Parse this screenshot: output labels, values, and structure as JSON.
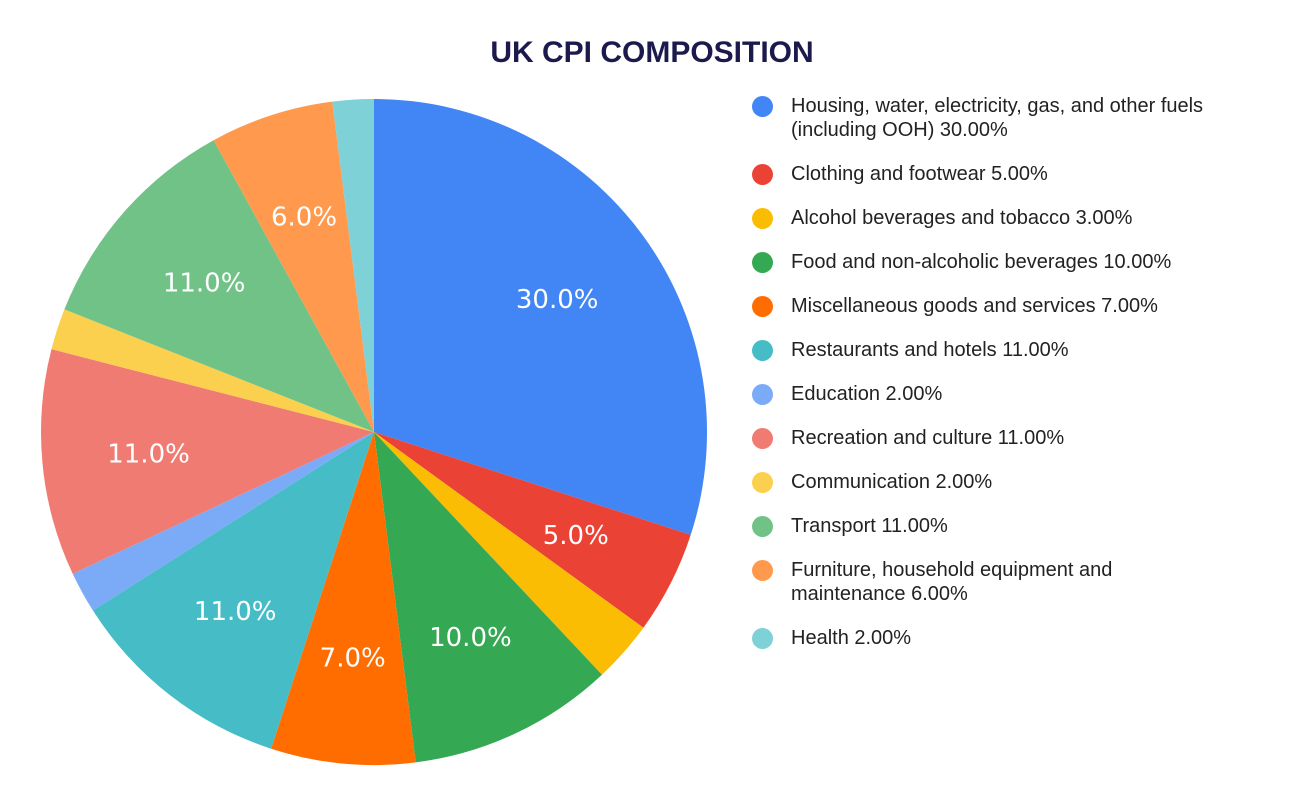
{
  "chart_data": {
    "type": "pie",
    "title": "UK CPI COMPOSITION",
    "start_angle": "top",
    "direction": "clockwise",
    "legend_position": "right",
    "slices": [
      {
        "label": "Housing, water, electricity, gas, and other fuels (including OOH)",
        "value": 30,
        "legend": "Housing, water, electricity, gas, and other fuels (including OOH) 30.00%",
        "data_label": "30.0%",
        "color": "#4285F4"
      },
      {
        "label": "Clothing and footwear",
        "value": 5,
        "legend": "Clothing and footwear 5.00%",
        "data_label": "5.0%",
        "color": "#EA4335"
      },
      {
        "label": "Alcohol beverages and tobacco",
        "value": 3,
        "legend": "Alcohol beverages and tobacco 3.00%",
        "data_label": "",
        "color": "#FBBC04"
      },
      {
        "label": "Food and non-alcoholic beverages",
        "value": 10,
        "legend": "Food and non-alcoholic beverages 10.00%",
        "data_label": "10.0%",
        "color": "#34A853"
      },
      {
        "label": "Miscellaneous goods and services",
        "value": 7,
        "legend": "Miscellaneous goods and services 7.00%",
        "data_label": "7.0%",
        "color": "#FF6D01"
      },
      {
        "label": "Restaurants and hotels",
        "value": 11,
        "legend": "Restaurants and hotels 11.00%",
        "data_label": "11.0%",
        "color": "#46BDC6"
      },
      {
        "label": "Education",
        "value": 2,
        "legend": "Education 2.00%",
        "data_label": "",
        "color": "#7BAAF7"
      },
      {
        "label": "Recreation and culture",
        "value": 11,
        "legend": "Recreation and culture 11.00%",
        "data_label": "11.0%",
        "color": "#F07B72"
      },
      {
        "label": "Communication",
        "value": 2,
        "legend": "Communication 2.00%",
        "data_label": "",
        "color": "#FCD04F"
      },
      {
        "label": "Transport",
        "value": 11,
        "legend": "Transport 11.00%",
        "data_label": "11.0%",
        "color": "#71C287"
      },
      {
        "label": "Furniture, household equipment and maintenance",
        "value": 6,
        "legend": "Furniture, household equipment and maintenance 6.00%",
        "data_label": "6.0%",
        "color": "#FF994D"
      },
      {
        "label": "Health",
        "value": 2,
        "legend": "Health 2.00%",
        "data_label": "",
        "color": "#7ED1D7"
      }
    ]
  }
}
